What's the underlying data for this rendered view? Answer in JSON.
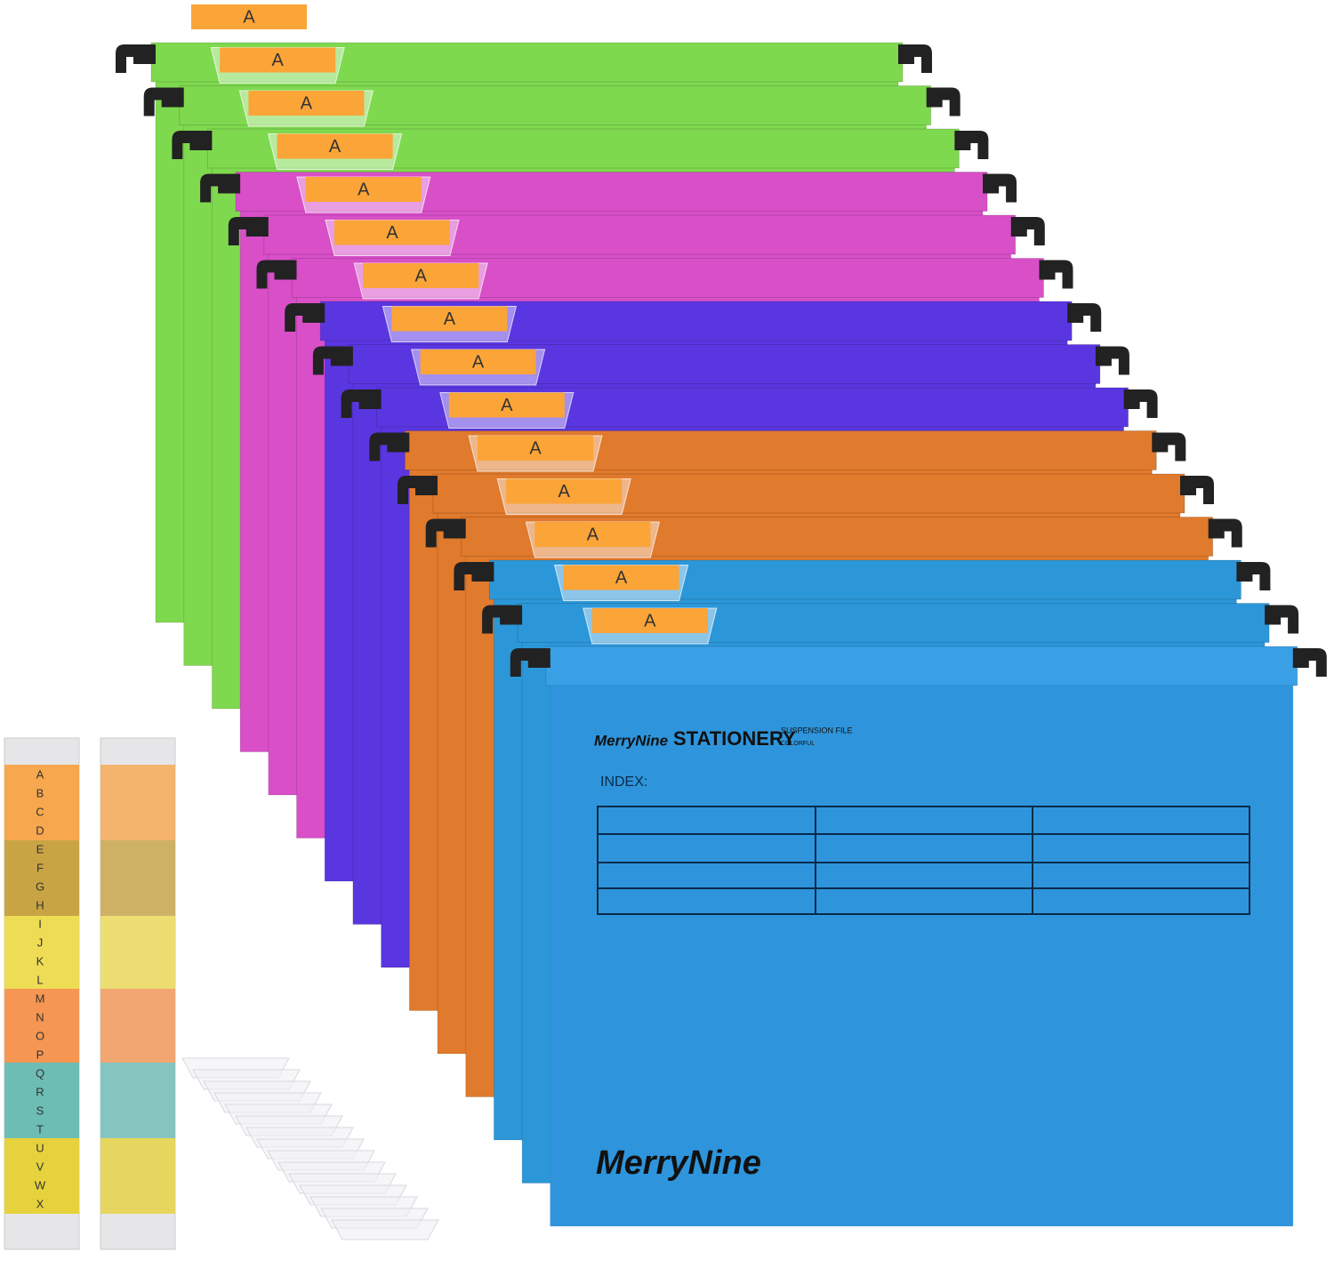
{
  "tabs": [
    "A",
    "A",
    "A",
    "A",
    "A",
    "A",
    "A",
    "A",
    "A",
    "A",
    "A",
    "A",
    "A",
    "A",
    "A"
  ],
  "front_folder": {
    "brand": "MerryNine",
    "product": "STATIONERY",
    "line1": "SUSPENSION FILE",
    "line2": "COLORFUL",
    "index": "INDEX:",
    "logo": "MerryNine"
  },
  "index_strip": {
    "letters": [
      "A",
      "B",
      "C",
      "D",
      "E",
      "F",
      "G",
      "H",
      "I",
      "J",
      "K",
      "L",
      "M",
      "N",
      "O",
      "P",
      "Q",
      "R",
      "S",
      "T",
      "U",
      "V",
      "W",
      "X"
    ]
  }
}
